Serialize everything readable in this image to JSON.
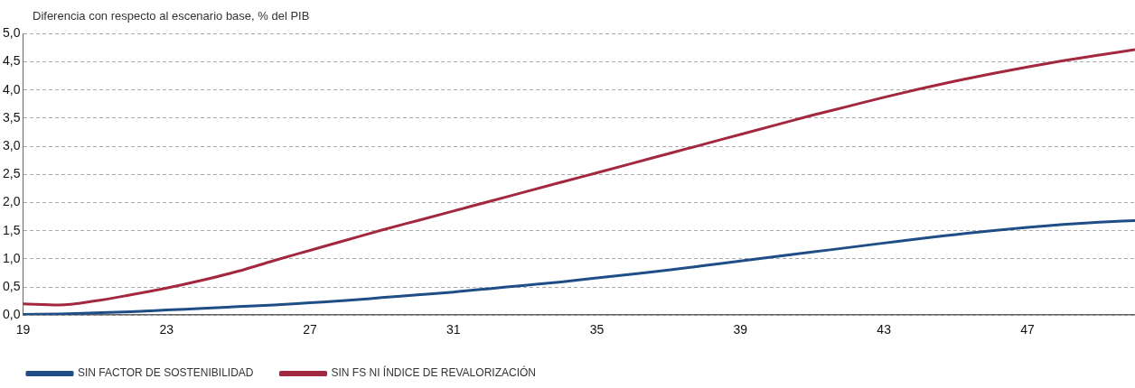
{
  "chart_data": {
    "type": "line",
    "ylabel": "Diferencia con respecto al escenario base, % del PIB",
    "x": [
      19,
      20,
      21,
      22,
      23,
      24,
      25,
      26,
      27,
      28,
      29,
      30,
      31,
      32,
      33,
      34,
      35,
      36,
      37,
      38,
      39,
      40,
      41,
      42,
      43,
      44,
      45,
      46,
      47,
      48,
      49,
      50
    ],
    "series": [
      {
        "name": "SIN FACTOR DE SOSTENIBILIDAD",
        "color": "#1f4e86",
        "values": [
          0.01,
          0.02,
          0.04,
          0.06,
          0.09,
          0.12,
          0.15,
          0.18,
          0.22,
          0.26,
          0.31,
          0.36,
          0.41,
          0.47,
          0.53,
          0.59,
          0.66,
          0.73,
          0.8,
          0.88,
          0.96,
          1.04,
          1.12,
          1.2,
          1.28,
          1.36,
          1.43,
          1.5,
          1.56,
          1.61,
          1.65,
          1.68
        ]
      },
      {
        "name": "SIN FS NI ÍNDICE DE REVALORIZACIÓN",
        "color": "#a3283f",
        "values": [
          0.2,
          0.18,
          0.25,
          0.36,
          0.48,
          0.62,
          0.78,
          0.97,
          1.15,
          1.33,
          1.51,
          1.68,
          1.85,
          2.02,
          2.19,
          2.36,
          2.53,
          2.7,
          2.87,
          3.04,
          3.21,
          3.38,
          3.55,
          3.71,
          3.87,
          4.02,
          4.16,
          4.29,
          4.41,
          4.52,
          4.62,
          4.72
        ]
      }
    ],
    "xlim": [
      19,
      50
    ],
    "xticks": [
      19,
      23,
      27,
      31,
      35,
      39,
      43,
      47
    ],
    "ylim": [
      0,
      5
    ],
    "yticks": [
      {
        "value": 0,
        "label": "0,0"
      },
      {
        "value": 0.5,
        "label": "0,5"
      },
      {
        "value": 1,
        "label": "1,0"
      },
      {
        "value": 1.5,
        "label": "1,5"
      },
      {
        "value": 2,
        "label": "2,0"
      },
      {
        "value": 2.5,
        "label": "2,5"
      },
      {
        "value": 3,
        "label": "3,0"
      },
      {
        "value": 3.5,
        "label": "3,5"
      },
      {
        "value": 4,
        "label": "4,0"
      },
      {
        "value": 4.5,
        "label": "4,5"
      },
      {
        "value": 5,
        "label": "5,0"
      }
    ],
    "grid": "y",
    "legend": "bottom left",
    "marker": "none",
    "line_style": "solid"
  }
}
